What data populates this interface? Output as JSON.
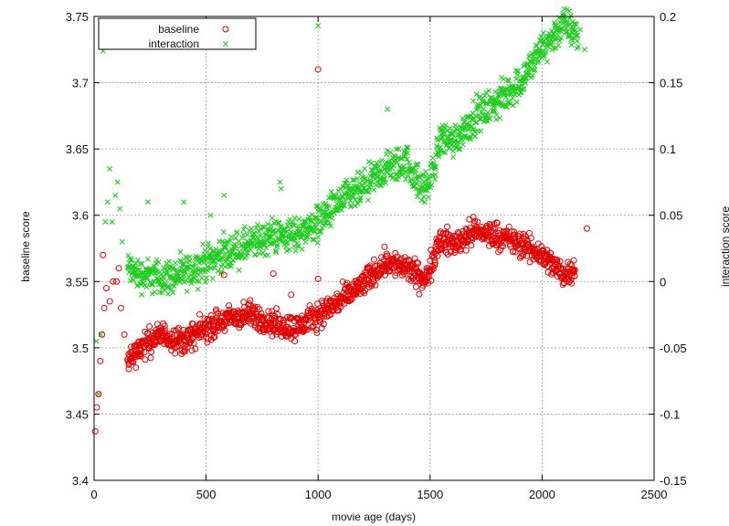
{
  "chart_data": {
    "type": "scatter",
    "xlabel": "movie age (days)",
    "ylabel": "baseline score",
    "y2label": "interaction score",
    "xlim": [
      0,
      2500
    ],
    "ylim": [
      3.4,
      3.75
    ],
    "y2lim": [
      -0.15,
      0.2
    ],
    "xticks": [
      "0",
      "500",
      "1000",
      "1500",
      "2000",
      "2500"
    ],
    "yticks": [
      "3.4",
      "3.45",
      "3.5",
      "3.55",
      "3.6",
      "3.65",
      "3.7",
      "3.75"
    ],
    "y2ticks": [
      "-0.15",
      "-0.1",
      "-0.05",
      "0",
      "0.05",
      "0.1",
      "0.15",
      "0.2"
    ],
    "grid": true,
    "legend_position": "top-left",
    "series": [
      {
        "name": "baseline",
        "axis": "left",
        "color": "#e00000",
        "marker": "circle",
        "trend": [
          [
            150,
            3.49
          ],
          [
            200,
            3.5
          ],
          [
            300,
            3.51
          ],
          [
            400,
            3.505
          ],
          [
            500,
            3.515
          ],
          [
            600,
            3.522
          ],
          [
            700,
            3.525
          ],
          [
            800,
            3.518
          ],
          [
            900,
            3.515
          ],
          [
            1000,
            3.525
          ],
          [
            1100,
            3.535
          ],
          [
            1200,
            3.548
          ],
          [
            1300,
            3.565
          ],
          [
            1400,
            3.56
          ],
          [
            1480,
            3.55
          ],
          [
            1540,
            3.582
          ],
          [
            1600,
            3.578
          ],
          [
            1700,
            3.588
          ],
          [
            1800,
            3.585
          ],
          [
            1900,
            3.578
          ],
          [
            2000,
            3.57
          ],
          [
            2100,
            3.555
          ],
          [
            2150,
            3.562
          ]
        ],
        "points": [
          [
            5,
            3.437
          ],
          [
            12,
            3.455
          ],
          [
            20,
            3.465
          ],
          [
            28,
            3.49
          ],
          [
            35,
            3.51
          ],
          [
            40,
            3.57
          ],
          [
            45,
            3.53
          ],
          [
            55,
            3.545
          ],
          [
            70,
            3.535
          ],
          [
            85,
            3.55
          ],
          [
            100,
            3.55
          ],
          [
            110,
            3.56
          ],
          [
            120,
            3.53
          ],
          [
            135,
            3.51
          ],
          [
            580,
            3.555
          ],
          [
            800,
            3.556
          ],
          [
            880,
            3.54
          ],
          [
            1000,
            3.552
          ],
          [
            1000,
            3.71
          ],
          [
            2200,
            3.59
          ]
        ]
      },
      {
        "name": "interaction",
        "axis": "right",
        "color": "#22cc22",
        "marker": "x",
        "trend": [
          [
            150,
            0.01
          ],
          [
            200,
            0.005
          ],
          [
            300,
            0.003
          ],
          [
            400,
            0.005
          ],
          [
            500,
            0.015
          ],
          [
            600,
            0.022
          ],
          [
            700,
            0.028
          ],
          [
            800,
            0.035
          ],
          [
            900,
            0.035
          ],
          [
            1000,
            0.045
          ],
          [
            1100,
            0.06
          ],
          [
            1200,
            0.07
          ],
          [
            1300,
            0.085
          ],
          [
            1400,
            0.09
          ],
          [
            1460,
            0.07
          ],
          [
            1500,
            0.075
          ],
          [
            1550,
            0.11
          ],
          [
            1600,
            0.105
          ],
          [
            1700,
            0.125
          ],
          [
            1800,
            0.135
          ],
          [
            1900,
            0.15
          ],
          [
            2000,
            0.175
          ],
          [
            2100,
            0.195
          ],
          [
            2160,
            0.185
          ]
        ],
        "points": [
          [
            10,
            -0.045
          ],
          [
            20,
            -0.085
          ],
          [
            30,
            -0.04
          ],
          [
            40,
            0.174
          ],
          [
            50,
            0.045
          ],
          [
            60,
            0.06
          ],
          [
            70,
            0.085
          ],
          [
            80,
            0.045
          ],
          [
            95,
            0.065
          ],
          [
            105,
            0.075
          ],
          [
            115,
            0.055
          ],
          [
            125,
            0.03
          ],
          [
            240,
            0.06
          ],
          [
            400,
            0.06
          ],
          [
            520,
            0.05
          ],
          [
            580,
            0.065
          ],
          [
            830,
            0.075
          ],
          [
            835,
            0.07
          ],
          [
            1000,
            0.193
          ],
          [
            1310,
            0.13
          ],
          [
            2170,
            0.19
          ],
          [
            2190,
            0.175
          ]
        ]
      }
    ]
  }
}
